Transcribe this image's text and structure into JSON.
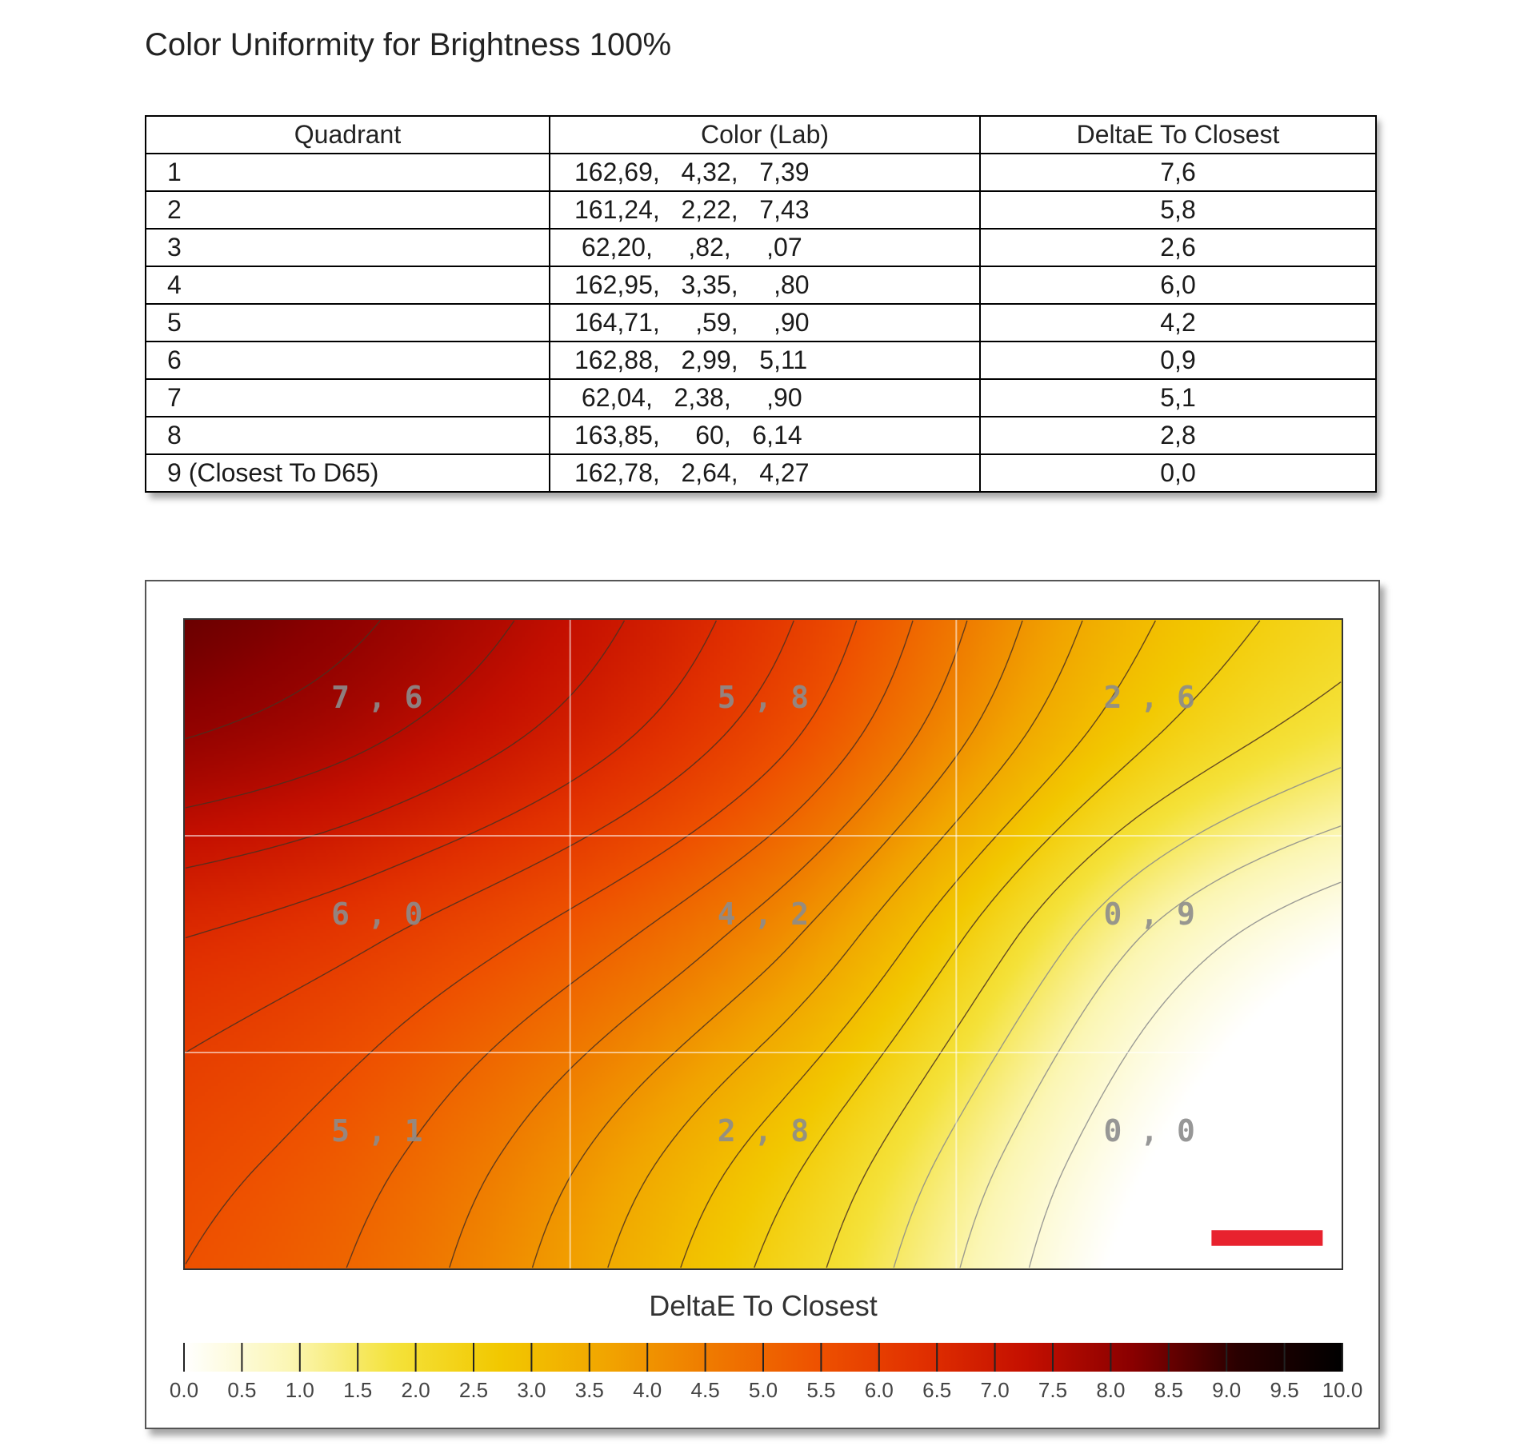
{
  "title": "Color Uniformity for Brightness 100%",
  "table": {
    "headers": [
      "Quadrant",
      "Color (Lab)",
      "DeltaE To Closest"
    ],
    "rows": [
      {
        "quadrant": "1",
        "lab": "162,69,   4,32,   7,39",
        "delta": "7,6"
      },
      {
        "quadrant": "2",
        "lab": "161,24,   2,22,   7,43",
        "delta": "5,8"
      },
      {
        "quadrant": "3",
        "lab": " 62,20,     ,82,     ,07",
        "delta": "2,6"
      },
      {
        "quadrant": "4",
        "lab": "162,95,   3,35,     ,80",
        "delta": "6,0"
      },
      {
        "quadrant": "5",
        "lab": "164,71,     ,59,     ,90",
        "delta": "4,2"
      },
      {
        "quadrant": "6",
        "lab": "162,88,   2,99,   5,11",
        "delta": "0,9"
      },
      {
        "quadrant": "7",
        "lab": " 62,04,   2,38,     ,90",
        "delta": "5,1"
      },
      {
        "quadrant": "8",
        "lab": "163,85,     60,   6,14",
        "delta": "2,8"
      },
      {
        "quadrant": "9 (Closest To D65)",
        "lab": "162,78,   2,64,   4,27",
        "delta": "0,0"
      }
    ]
  },
  "chart_data": {
    "type": "heatmap",
    "title": "",
    "grid": {
      "rows": 3,
      "cols": 3
    },
    "cells": [
      {
        "row": 0,
        "col": 0,
        "value": 7.6,
        "label": "7,6"
      },
      {
        "row": 0,
        "col": 1,
        "value": 5.8,
        "label": "5,8"
      },
      {
        "row": 0,
        "col": 2,
        "value": 2.6,
        "label": "2,6"
      },
      {
        "row": 1,
        "col": 0,
        "value": 6.0,
        "label": "6,0"
      },
      {
        "row": 1,
        "col": 1,
        "value": 4.2,
        "label": "4,2"
      },
      {
        "row": 1,
        "col": 2,
        "value": 0.9,
        "label": "0,9"
      },
      {
        "row": 2,
        "col": 0,
        "value": 5.1,
        "label": "5,1"
      },
      {
        "row": 2,
        "col": 1,
        "value": 2.8,
        "label": "2,8"
      },
      {
        "row": 2,
        "col": 2,
        "value": 0.0,
        "label": "0,0"
      }
    ],
    "contours": true,
    "grid_lines": true,
    "marker_color": "#e8222e",
    "colorbar": {
      "label": "DeltaE To Closest",
      "range": [
        0,
        10
      ],
      "ticks": [
        "0.0",
        "0.5",
        "1.0",
        "1.5",
        "2.0",
        "2.5",
        "3.0",
        "3.5",
        "4.0",
        "4.5",
        "5.0",
        "5.5",
        "6.0",
        "6.5",
        "7.0",
        "7.5",
        "8.0",
        "8.5",
        "9.0",
        "9.5",
        "10.0"
      ],
      "colors": [
        "#ffffff",
        "#fbf6b4",
        "#f4e23a",
        "#f2c800",
        "#f1a500",
        "#ef7a00",
        "#ee5200",
        "#e13000",
        "#c40f00",
        "#8a0000",
        "#2a0000",
        "#000000"
      ]
    }
  }
}
